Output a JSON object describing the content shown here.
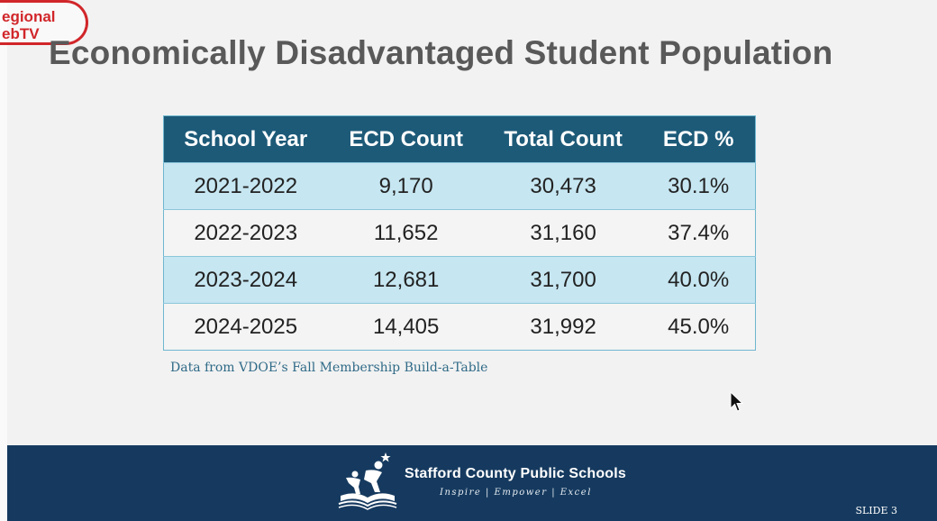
{
  "watermark": {
    "line1": "egional",
    "line2": "ebTV"
  },
  "title": "Economically Disadvantaged Student Population",
  "table": {
    "headers": [
      "School Year",
      "ECD Count",
      "Total Count",
      "ECD %"
    ],
    "rows": [
      [
        "2021-2022",
        "9,170",
        "30,473",
        "30.1%"
      ],
      [
        "2022-2023",
        "11,652",
        "31,160",
        "37.4%"
      ],
      [
        "2023-2024",
        "12,681",
        "31,700",
        "40.0%"
      ],
      [
        "2024-2025",
        "14,405",
        "31,992",
        "45.0%"
      ]
    ]
  },
  "source_note": "Data from VDOE’s Fall Membership Build-a-Table",
  "footer": {
    "org_name": "Stafford County Public Schools",
    "tagline": "Inspire | Empower | Excel",
    "slide_number": "SLIDE 3"
  },
  "colors": {
    "header_bg": "#1d5a78",
    "row_odd": "#c6e6f1",
    "row_even": "#f4f4f4",
    "footer_bg": "#163a5f",
    "watermark": "#d1262a",
    "title": "#595959"
  },
  "icons": {
    "logo": "scps-logo-icon",
    "cursor": "mouse-cursor-icon"
  }
}
